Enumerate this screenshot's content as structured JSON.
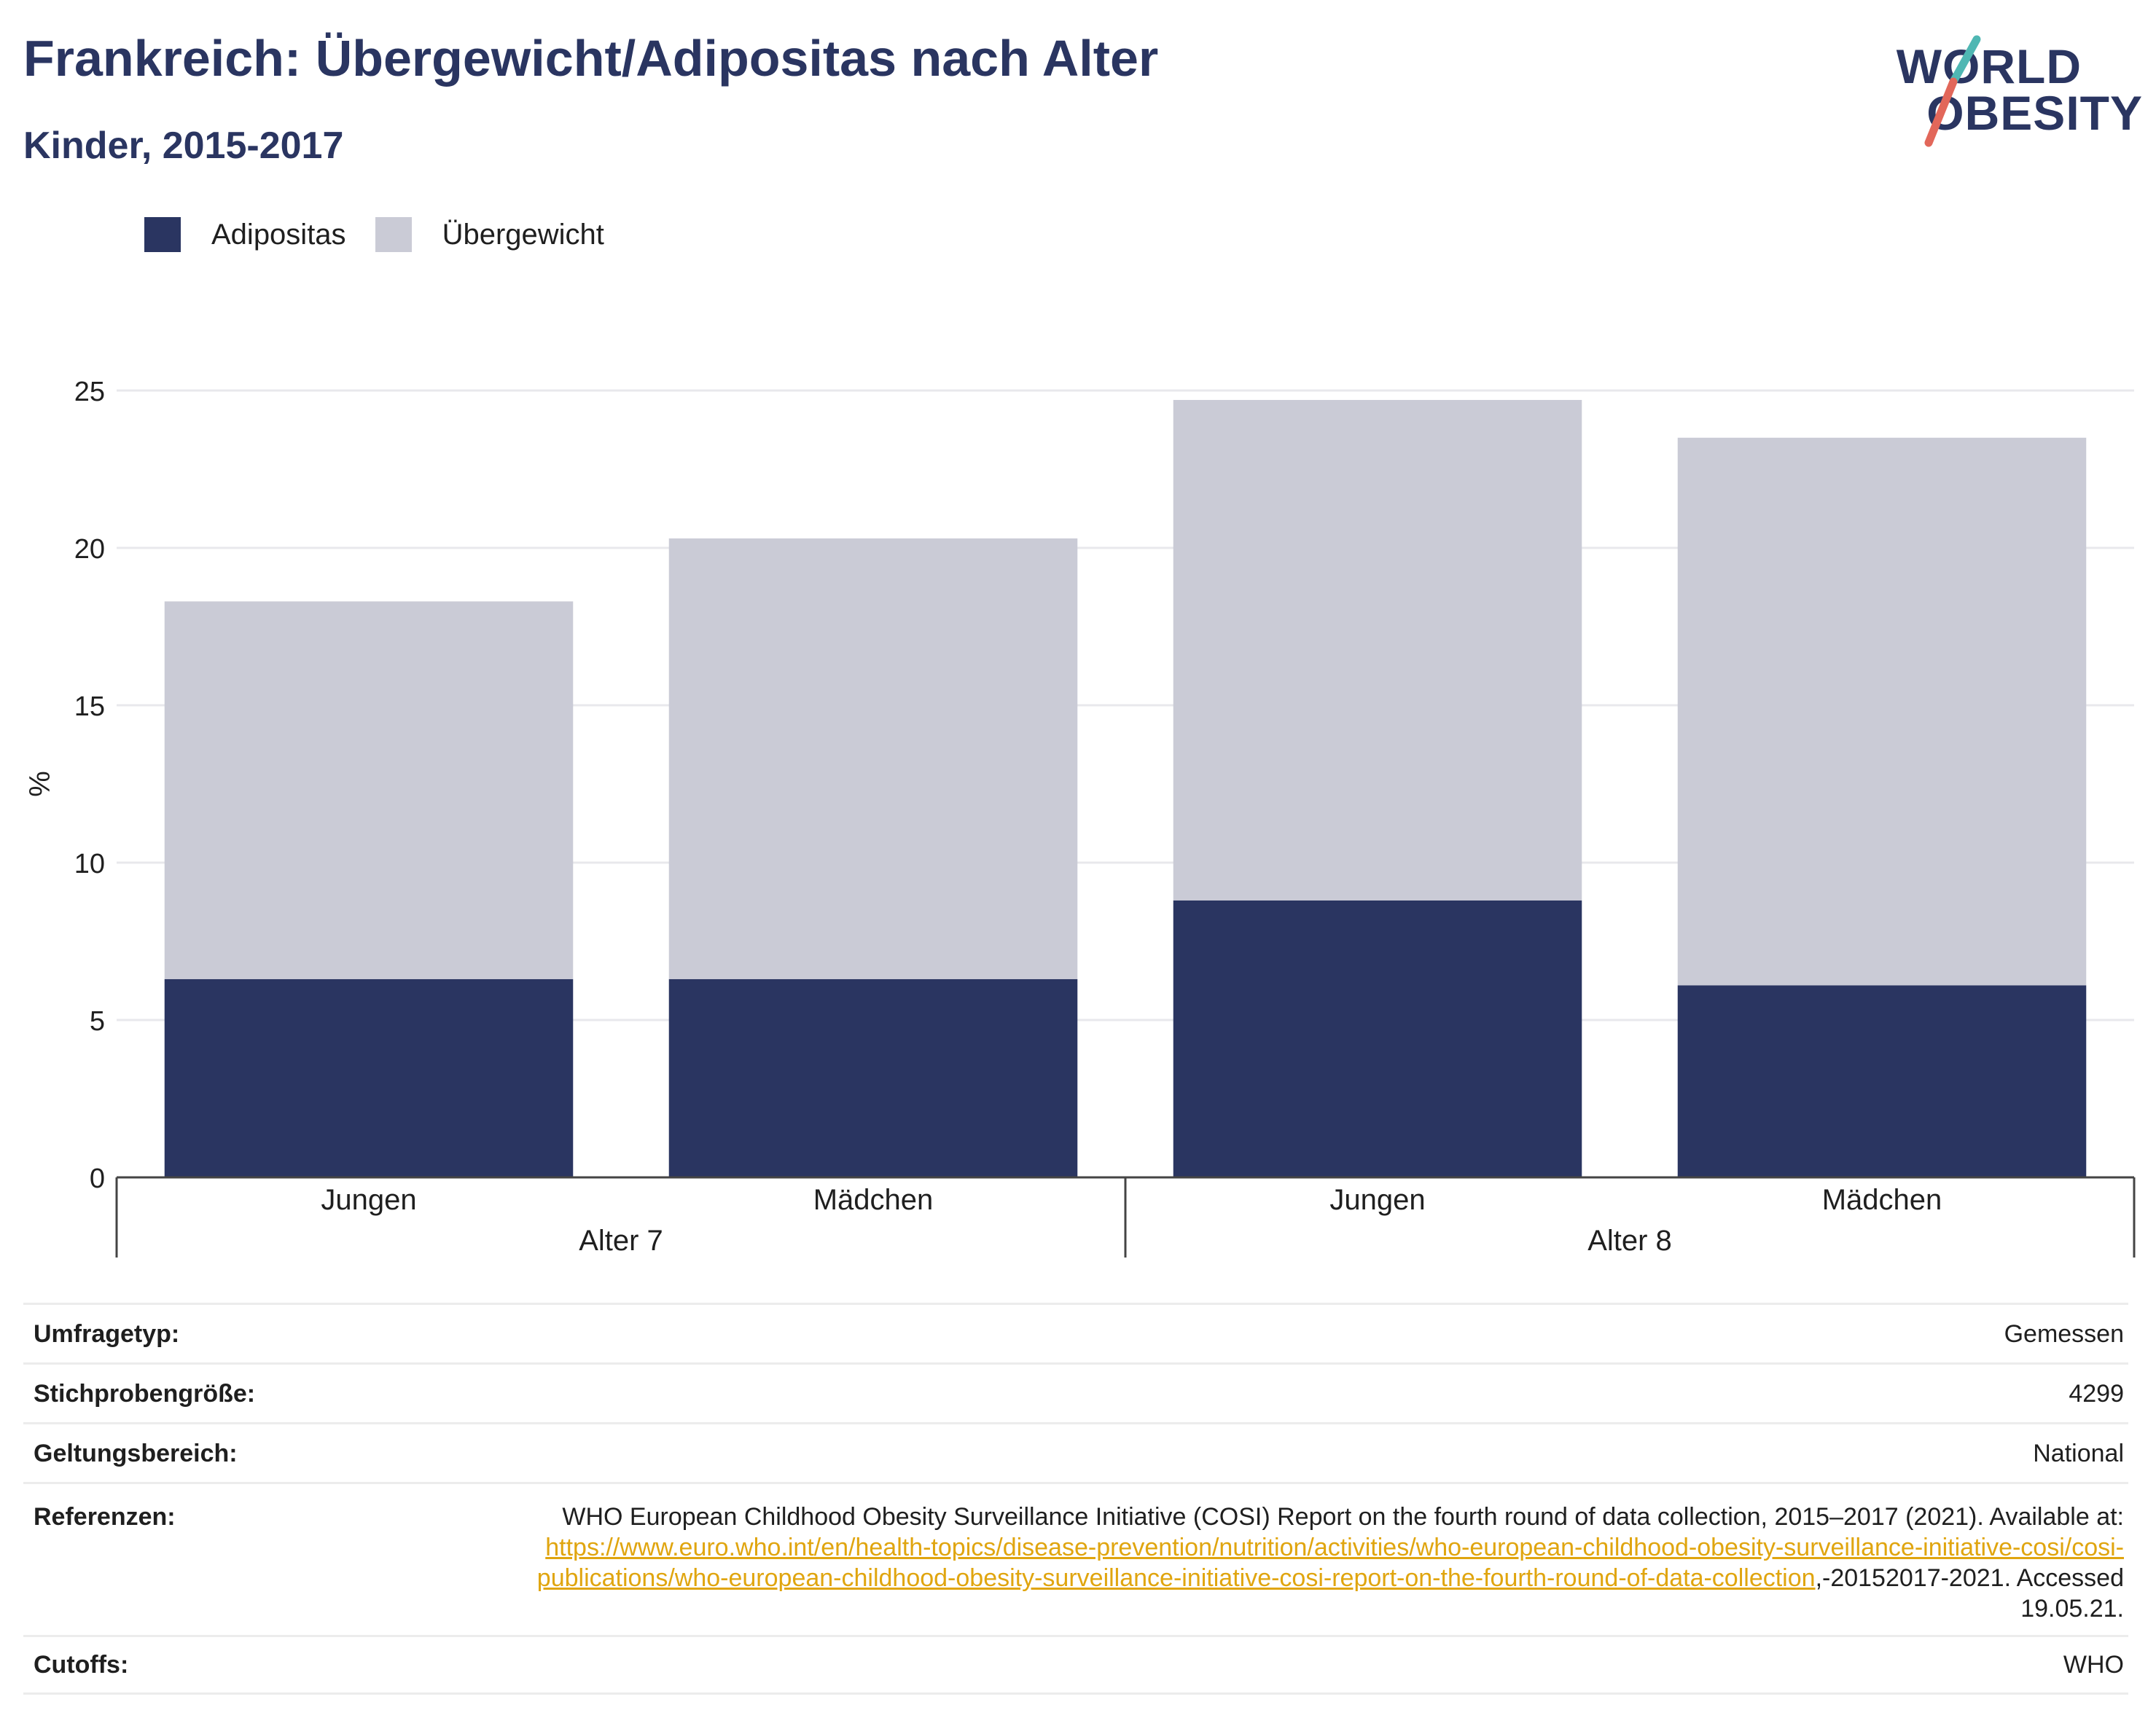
{
  "title": "Frankreich: Übergewicht/Adipositas nach Alter",
  "subtitle": "Kinder, 2015-2017",
  "logo": {
    "line1": "WORLD",
    "line2": "OBESITY",
    "slash_colors": [
      "#4fb7b3",
      "#e2675a"
    ]
  },
  "colors": {
    "adipositas": "#2a3561",
    "uebergewicht": "#cacbd6",
    "title": "#2a3561",
    "link": "#e0a50f"
  },
  "legend": [
    {
      "label": "Adipositas",
      "color": "#2a3561"
    },
    {
      "label": "Übergewicht",
      "color": "#cacbd6"
    }
  ],
  "chart_data": {
    "type": "bar",
    "stacked": true,
    "ylabel": "%",
    "ylim": [
      0,
      25
    ],
    "yticks": [
      0,
      5,
      10,
      15,
      20,
      25
    ],
    "grid": true,
    "legend_position": "top-left",
    "groups": [
      {
        "label": "Alter 7",
        "categories": [
          "Jungen",
          "Mädchen"
        ]
      },
      {
        "label": "Alter 8",
        "categories": [
          "Jungen",
          "Mädchen"
        ]
      }
    ],
    "categories": [
      "Jungen",
      "Mädchen",
      "Jungen",
      "Mädchen"
    ],
    "series": [
      {
        "name": "Adipositas",
        "values": [
          6.3,
          6.3,
          8.8,
          6.1
        ],
        "color": "#2a3561"
      },
      {
        "name": "Übergewicht",
        "values": [
          12.0,
          14.0,
          15.9,
          17.4
        ],
        "color": "#cacbd6"
      }
    ]
  },
  "info": {
    "survey_type": {
      "label": "Umfragetyp:",
      "value": "Gemessen"
    },
    "sample_size": {
      "label": "Stichprobengröße:",
      "value": "4299"
    },
    "scope": {
      "label": "Geltungsbereich:",
      "value": "National"
    },
    "references": {
      "label": "Referenzen:",
      "text_before": "WHO European Childhood Obesity Surveillance Initiative (COSI) Report on the fourth round of data collection, 2015–2017 (2021). Available at: ",
      "link": "https://www.euro.who.int/en/health-topics/disease-prevention/nutrition/activities/who-european-childhood-obesity-surveillance-initiative-cosi/cosi-publications/who-european-childhood-obesity-surveillance-initiative-cosi-report-on-the-fourth-round-of-data-collection",
      "text_after": ",-20152017-2021. Accessed 19.05.21."
    },
    "cutoffs": {
      "label": "Cutoffs:",
      "value": "WHO"
    }
  }
}
